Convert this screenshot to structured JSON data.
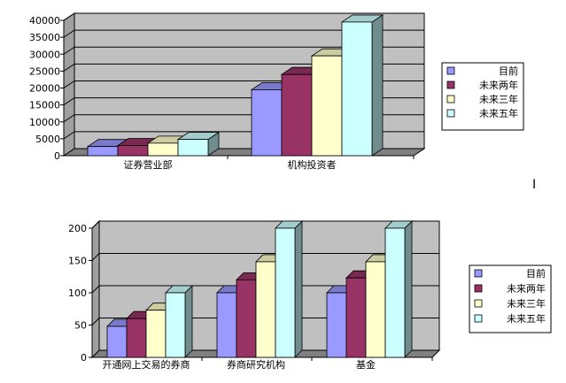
{
  "chart_data": [
    {
      "type": "bar",
      "categories": [
        "证券营业部",
        "机构投资者"
      ],
      "series": [
        {
          "name": "目前",
          "values": [
            2700,
            19500
          ]
        },
        {
          "name": "未来两年",
          "values": [
            3000,
            24000
          ]
        },
        {
          "name": "未来三年",
          "values": [
            3700,
            29500
          ]
        },
        {
          "name": "未来五年",
          "values": [
            4800,
            39500
          ]
        }
      ],
      "ylim": [
        0,
        40000
      ],
      "yticks": [
        "0",
        "5000",
        "10000",
        "15000",
        "20000",
        "25000",
        "30000",
        "35000",
        "40000"
      ],
      "legend": "right",
      "grid": true
    },
    {
      "type": "bar",
      "categories": [
        "开通网上交易的券商",
        "券商研究机构",
        "基金"
      ],
      "series": [
        {
          "name": "目前",
          "values": [
            48,
            100,
            100
          ]
        },
        {
          "name": "未来两年",
          "values": [
            60,
            120,
            123
          ]
        },
        {
          "name": "未来三年",
          "values": [
            73,
            148,
            148
          ]
        },
        {
          "name": "未来五年",
          "values": [
            100,
            200,
            200
          ]
        }
      ],
      "ylim": [
        0,
        200
      ],
      "yticks": [
        "0",
        "50",
        "100",
        "150",
        "200"
      ],
      "legend": "right",
      "grid": true
    }
  ],
  "colors": {
    "series": [
      "#9999ff",
      "#993366",
      "#ffffcc",
      "#ccffff"
    ],
    "wall": "#c0c0c0",
    "floor": "#808080"
  },
  "cursor_glyph": "I"
}
